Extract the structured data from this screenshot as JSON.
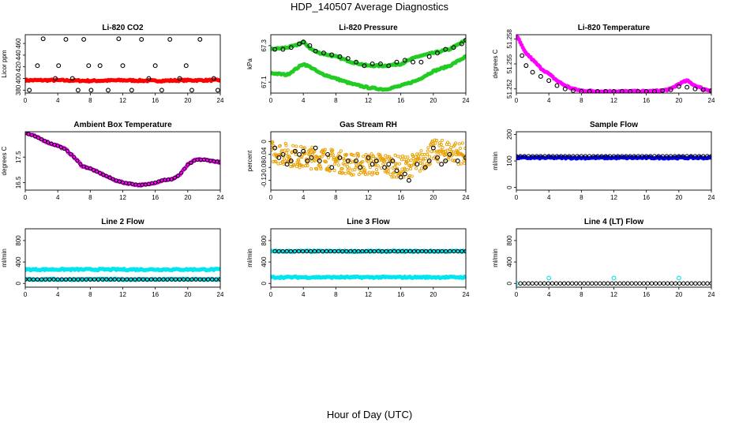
{
  "figure": {
    "title": "HDP_140507  Average Diagnostics",
    "xlabel": "Hour of Day (UTC)"
  },
  "colors": {
    "black": "#000000",
    "red": "#ff0000",
    "green": "#22cc22",
    "magenta": "#ff00ff",
    "orange": "#e8a000",
    "blue": "#0000ff",
    "cyan": "#00e5ee"
  },
  "chart_data": [
    {
      "type": "scatter",
      "title": "Li-820 CO2",
      "ylabel": "Licor ppm",
      "xlim": [
        0,
        24
      ],
      "ylim": [
        375,
        475
      ],
      "yticks": [
        380,
        400,
        420,
        440,
        460
      ],
      "xticks": [
        0,
        4,
        8,
        12,
        16,
        20,
        24
      ],
      "series": [
        {
          "name": "co2-averages",
          "color": "red",
          "kind": "band",
          "x": [
            0,
            4,
            8,
            12,
            16,
            20,
            24
          ],
          "values": [
            397,
            397,
            396,
            397,
            396,
            397,
            397
          ]
        },
        {
          "name": "co2-diagnostic-points",
          "color": "black",
          "kind": "points",
          "x": [
            0.5,
            1.5,
            2.2,
            3.7,
            4.1,
            5.0,
            5.8,
            6.5,
            7.2,
            7.8,
            8.1,
            9.2,
            10.2,
            11.5,
            12.0,
            13.1,
            14.3,
            15.2,
            16.0,
            16.8,
            17.8,
            19.0,
            19.8,
            20.5,
            21.5,
            23.2,
            23.7
          ],
          "values": [
            380,
            422,
            468,
            400,
            422,
            467,
            400,
            380,
            467,
            422,
            380,
            422,
            380,
            468,
            422,
            380,
            467,
            400,
            422,
            380,
            467,
            400,
            422,
            380,
            467,
            400,
            380
          ]
        }
      ]
    },
    {
      "type": "scatter",
      "title": "Li-820 Pressure",
      "ylabel": "kPa",
      "xlim": [
        0,
        24
      ],
      "ylim": [
        67.04,
        67.36
      ],
      "yticks": [
        67.1,
        67.3
      ],
      "xticks": [
        0,
        4,
        8,
        12,
        16,
        20,
        24
      ],
      "series": [
        {
          "name": "pressure-upper",
          "color": "green",
          "kind": "band",
          "x": [
            0,
            2,
            3,
            4,
            5,
            6,
            8,
            10,
            12,
            14,
            16,
            18,
            20,
            22,
            24
          ],
          "values": [
            67.28,
            67.29,
            67.3,
            67.32,
            67.28,
            67.26,
            67.24,
            67.21,
            67.19,
            67.19,
            67.2,
            67.24,
            67.26,
            67.28,
            67.33
          ]
        },
        {
          "name": "pressure-lower",
          "color": "green",
          "kind": "band",
          "x": [
            0,
            2,
            3,
            4,
            5,
            6,
            8,
            10,
            12,
            14,
            16,
            18,
            20,
            22,
            24
          ],
          "values": [
            67.15,
            67.14,
            67.17,
            67.2,
            67.18,
            67.15,
            67.12,
            67.09,
            67.07,
            67.06,
            67.08,
            67.11,
            67.16,
            67.19,
            67.24
          ]
        },
        {
          "name": "pressure-averages",
          "color": "black",
          "kind": "points",
          "x": [
            0.5,
            1.5,
            2.5,
            3.5,
            4.0,
            4.8,
            5.5,
            6.5,
            7.5,
            8.5,
            9.5,
            10.5,
            11.5,
            12.5,
            13.5,
            14.5,
            15.5,
            16.5,
            17.5,
            18.5,
            19.5,
            20.5,
            21.5,
            22.5,
            23.5,
            24.0
          ],
          "values": [
            67.28,
            67.28,
            67.29,
            67.31,
            67.32,
            67.3,
            67.27,
            67.26,
            67.25,
            67.24,
            67.23,
            67.21,
            67.19,
            67.2,
            67.2,
            67.19,
            67.21,
            67.22,
            67.21,
            67.21,
            67.24,
            67.26,
            67.28,
            67.29,
            67.31,
            67.33
          ]
        }
      ]
    },
    {
      "type": "scatter",
      "title": "Li-820 Temperature",
      "ylabel": "degrees C",
      "xlim": [
        0,
        24
      ],
      "ylim": [
        51.2515,
        51.2585
      ],
      "yticks": [
        51.252,
        51.255,
        51.258
      ],
      "xticks": [
        0,
        4,
        8,
        12,
        16,
        20,
        24
      ],
      "series": [
        {
          "name": "temperature-raw",
          "color": "magenta",
          "kind": "band",
          "x": [
            0,
            0.5,
            1,
            2,
            3,
            4,
            5,
            6,
            7,
            8,
            10,
            12,
            14,
            16,
            18,
            19,
            20,
            21,
            22,
            23,
            24
          ],
          "values": [
            51.2585,
            51.2575,
            51.2565,
            51.2555,
            51.2545,
            51.2538,
            51.253,
            51.2524,
            51.252,
            51.2518,
            51.2517,
            51.2517,
            51.2517,
            51.2517,
            51.2518,
            51.252,
            51.2526,
            51.253,
            51.2524,
            51.252,
            51.2518
          ]
        },
        {
          "name": "temperature-averages",
          "color": "black",
          "kind": "points",
          "x": [
            0.7,
            1.2,
            2.0,
            3.0,
            4.0,
            5.0,
            6.0,
            7.0,
            8.0,
            9.0,
            10.0,
            11.0,
            12.0,
            13.0,
            14.0,
            15.0,
            16.0,
            17.0,
            18.0,
            19.0,
            20.0,
            21.0,
            22.0,
            23.0,
            24.0
          ],
          "values": [
            51.256,
            51.2548,
            51.254,
            51.2535,
            51.253,
            51.2524,
            51.252,
            51.2518,
            51.2517,
            51.2517,
            51.2517,
            51.2517,
            51.2517,
            51.2517,
            51.2517,
            51.2517,
            51.2517,
            51.2517,
            51.2518,
            51.2519,
            51.2523,
            51.2522,
            51.252,
            51.2519,
            51.2518
          ]
        }
      ]
    },
    {
      "type": "scatter",
      "title": "Ambient Box Temperature",
      "ylabel": "degrees C",
      "xlim": [
        0,
        24
      ],
      "ylim": [
        16.2,
        18.5
      ],
      "yticks": [
        16.5,
        17.5
      ],
      "xticks": [
        0,
        4,
        8,
        12,
        16,
        20,
        24
      ],
      "series": [
        {
          "name": "box-temp-raw",
          "color": "magenta",
          "kind": "band",
          "x": [
            0,
            1,
            2,
            3,
            4,
            5,
            6,
            7,
            8,
            9,
            10,
            11,
            12,
            13,
            14,
            15,
            16,
            17,
            18,
            19,
            20,
            21,
            22,
            23,
            24
          ],
          "values": [
            18.45,
            18.35,
            18.2,
            18.05,
            17.95,
            17.8,
            17.5,
            17.15,
            17.05,
            16.9,
            16.75,
            16.6,
            16.5,
            16.45,
            16.4,
            16.42,
            16.5,
            16.6,
            16.62,
            16.8,
            17.2,
            17.4,
            17.4,
            17.35,
            17.3
          ]
        },
        {
          "name": "box-temp-averages",
          "color": "black",
          "kind": "line-points",
          "x": [
            0,
            1,
            2,
            3,
            4,
            5,
            6,
            7,
            8,
            9,
            10,
            11,
            12,
            13,
            14,
            15,
            16,
            17,
            18,
            19,
            20,
            21,
            22,
            23,
            24
          ],
          "values": [
            18.45,
            18.35,
            18.2,
            18.05,
            17.95,
            17.8,
            17.5,
            17.15,
            17.05,
            16.9,
            16.75,
            16.6,
            16.5,
            16.45,
            16.4,
            16.42,
            16.5,
            16.6,
            16.62,
            16.8,
            17.2,
            17.4,
            17.4,
            17.35,
            17.3
          ]
        }
      ]
    },
    {
      "type": "scatter",
      "title": "Gas Stream RH",
      "ylabel": "percent",
      "xlim": [
        0,
        24
      ],
      "ylim": [
        -0.15,
        0.03
      ],
      "yticks": [
        -0.12,
        -0.08,
        -0.04,
        0.0
      ],
      "xticks": [
        0,
        4,
        8,
        12,
        16,
        20,
        24
      ],
      "series": [
        {
          "name": "rh-raw",
          "color": "orange",
          "kind": "cloud",
          "x": [
            0,
            2,
            4,
            6,
            8,
            10,
            12,
            14,
            16,
            18,
            20,
            22,
            24
          ],
          "values": [
            -0.03,
            -0.04,
            -0.05,
            -0.05,
            -0.06,
            -0.07,
            -0.07,
            -0.07,
            -0.08,
            -0.07,
            -0.03,
            -0.03,
            -0.04
          ],
          "spread": 0.035
        },
        {
          "name": "rh-averages",
          "color": "black",
          "kind": "points",
          "x": [
            0.5,
            1.0,
            1.5,
            2.0,
            2.5,
            3.0,
            3.5,
            4.0,
            4.5,
            5.0,
            5.5,
            6.0,
            7.0,
            7.5,
            8.5,
            9.5,
            10.5,
            11.0,
            12.0,
            12.5,
            13.0,
            14.0,
            14.5,
            15.0,
            15.5,
            16.0,
            16.5,
            17.0,
            18.0,
            19.0,
            19.5,
            20.0,
            20.5,
            21.0,
            21.5,
            22.0,
            23.0,
            24.0
          ],
          "values": [
            -0.02,
            -0.05,
            -0.04,
            -0.07,
            -0.06,
            -0.03,
            -0.04,
            -0.03,
            -0.06,
            -0.05,
            -0.02,
            -0.06,
            -0.04,
            -0.08,
            -0.05,
            -0.06,
            -0.06,
            -0.08,
            -0.05,
            -0.07,
            -0.06,
            -0.08,
            -0.07,
            -0.06,
            -0.09,
            -0.11,
            -0.1,
            -0.12,
            -0.07,
            -0.08,
            -0.06,
            -0.02,
            -0.05,
            -0.07,
            -0.06,
            -0.04,
            -0.06,
            -0.05
          ]
        }
      ]
    },
    {
      "type": "scatter",
      "title": "Sample Flow",
      "ylabel": "ml/min",
      "xlim": [
        0,
        24
      ],
      "ylim": [
        -10,
        210
      ],
      "yticks": [
        0,
        100,
        200
      ],
      "xticks": [
        0,
        4,
        8,
        12,
        16,
        20,
        24
      ],
      "series": [
        {
          "name": "sample-flow-raw",
          "color": "blue",
          "kind": "band",
          "x": [
            0,
            24
          ],
          "values": [
            112,
            112
          ]
        },
        {
          "name": "sample-flow-averages",
          "color": "black",
          "kind": "dense-points",
          "x": [
            0,
            24
          ],
          "values": [
            118,
            118
          ]
        }
      ]
    },
    {
      "type": "scatter",
      "title": "Line 2 Flow",
      "ylabel": "ml/min",
      "xlim": [
        0,
        24
      ],
      "ylim": [
        -70,
        1020
      ],
      "yticks": [
        0,
        400,
        800
      ],
      "xticks": [
        0,
        4,
        8,
        12,
        16,
        20,
        24
      ],
      "series": [
        {
          "name": "line2-raw-upper",
          "color": "cyan",
          "kind": "band",
          "x": [
            0,
            24
          ],
          "values": [
            260,
            260
          ]
        },
        {
          "name": "line2-raw-lower",
          "color": "cyan",
          "kind": "band",
          "x": [
            0,
            24
          ],
          "values": [
            75,
            75
          ]
        },
        {
          "name": "line2-averages",
          "color": "black",
          "kind": "dense-points",
          "x": [
            0,
            24
          ],
          "values": [
            75,
            75
          ]
        }
      ]
    },
    {
      "type": "scatter",
      "title": "Line 3 Flow",
      "ylabel": "ml/min",
      "xlim": [
        0,
        24
      ],
      "ylim": [
        -70,
        1020
      ],
      "yticks": [
        0,
        400,
        800
      ],
      "xticks": [
        0,
        4,
        8,
        12,
        16,
        20,
        24
      ],
      "series": [
        {
          "name": "line3-raw-upper",
          "color": "cyan",
          "kind": "band",
          "x": [
            0,
            24
          ],
          "values": [
            600,
            600
          ]
        },
        {
          "name": "line3-raw-lower",
          "color": "cyan",
          "kind": "band",
          "x": [
            0,
            24
          ],
          "values": [
            115,
            115
          ]
        },
        {
          "name": "line3-averages",
          "color": "black",
          "kind": "dense-points",
          "x": [
            0.5,
            24
          ],
          "values": [
            600,
            600
          ]
        }
      ]
    },
    {
      "type": "scatter",
      "title": "Line 4 (LT) Flow",
      "ylabel": "ml/min",
      "xlim": [
        0,
        24
      ],
      "ylim": [
        -70,
        1020
      ],
      "yticks": [
        0,
        400,
        800
      ],
      "xticks": [
        0,
        4,
        8,
        12,
        16,
        20,
        24
      ],
      "series": [
        {
          "name": "line4-raw",
          "color": "cyan",
          "kind": "points",
          "x": [
            0,
            4,
            12,
            20
          ],
          "values": [
            0,
            100,
            100,
            100
          ]
        },
        {
          "name": "line4-averages",
          "color": "black",
          "kind": "dense-points",
          "x": [
            0.5,
            24
          ],
          "values": [
            0,
            0
          ]
        }
      ]
    }
  ]
}
